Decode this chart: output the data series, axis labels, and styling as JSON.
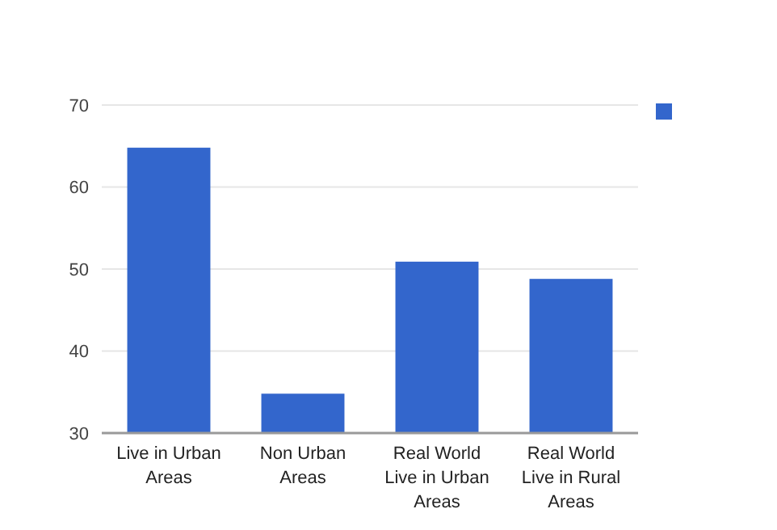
{
  "chart_data": {
    "type": "bar",
    "categories": [
      "Live in Urban Areas",
      "Non Urban Areas",
      "Real World Live in Urban Areas",
      "Real World Live in Rural Areas"
    ],
    "series": [
      {
        "color": "#3366cc",
        "values": [
          64.8,
          34.8,
          50.9,
          48.8
        ]
      }
    ],
    "ylim": [
      30,
      70
    ],
    "yticks": [
      30,
      40,
      50,
      60,
      70
    ],
    "grid": "y"
  }
}
